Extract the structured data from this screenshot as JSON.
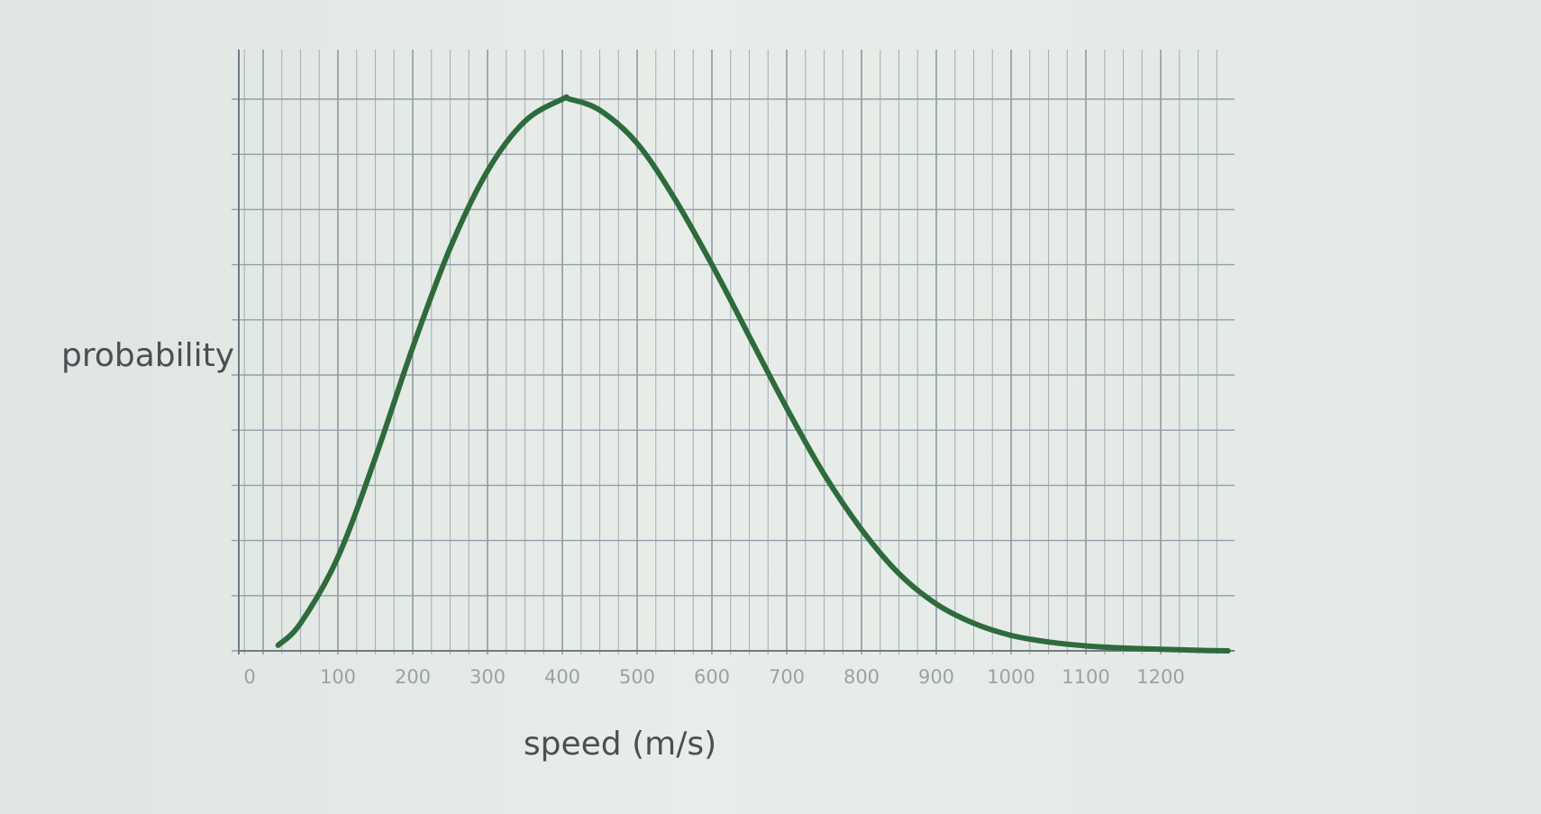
{
  "chart_data": {
    "type": "line",
    "title": "",
    "xlabel": "speed (m/s)",
    "ylabel": "probability",
    "xlim": [
      0,
      1290
    ],
    "ylim": [
      0,
      1
    ],
    "x_ticks": [
      "0",
      "100",
      "200",
      "300",
      "400",
      "500",
      "600",
      "700",
      "800",
      "900",
      "1000",
      "1100",
      "1200"
    ],
    "grid": true,
    "legend": "none",
    "series": [
      {
        "color": "#2e6b3c",
        "x": [
          20,
          50,
          100,
          150,
          200,
          250,
          300,
          350,
          400,
          410,
          450,
          500,
          550,
          600,
          650,
          700,
          750,
          800,
          850,
          900,
          950,
          1000,
          1050,
          1100,
          1150,
          1200,
          1250,
          1290
        ],
        "y": [
          0.01,
          0.05,
          0.17,
          0.35,
          0.55,
          0.73,
          0.87,
          0.96,
          1.0,
          1.0,
          0.98,
          0.92,
          0.82,
          0.7,
          0.57,
          0.44,
          0.32,
          0.22,
          0.14,
          0.085,
          0.05,
          0.028,
          0.016,
          0.009,
          0.005,
          0.003,
          0.001,
          0.0
        ]
      }
    ]
  }
}
